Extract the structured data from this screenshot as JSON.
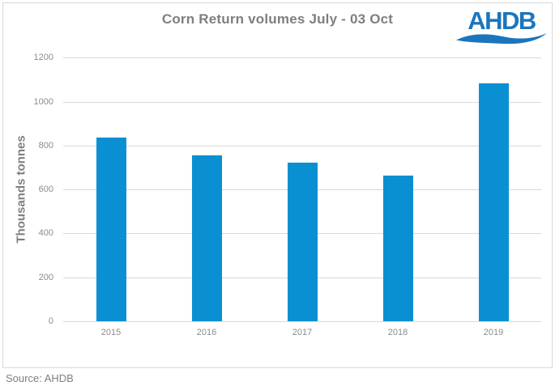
{
  "header": {
    "title": "Corn Return volumes July - 03 Oct",
    "logo_text": "AHDB",
    "logo_icon": "ahdb-wave-swoosh"
  },
  "footer": {
    "source": "Source: AHDB"
  },
  "colors": {
    "bar": "#0a90d2",
    "logo_blue": "#1b75bc",
    "grid": "#d9d9d9",
    "text_gray": "#7f7f7f",
    "tick_gray": "#8c8c8c"
  },
  "chart_data": {
    "type": "bar",
    "title": "Corn Return volumes July - 03 Oct",
    "categories": [
      "2015",
      "2016",
      "2017",
      "2018",
      "2019"
    ],
    "values": [
      836,
      756,
      722,
      665,
      1082
    ],
    "xlabel": "",
    "ylabel": "Thousands tonnes",
    "ylim": [
      0,
      1200
    ],
    "yticks": [
      0,
      200,
      400,
      600,
      800,
      1000,
      1200
    ],
    "grid": true,
    "legend": false,
    "bar_color": "#0a90d2",
    "source": "Source: AHDB"
  }
}
